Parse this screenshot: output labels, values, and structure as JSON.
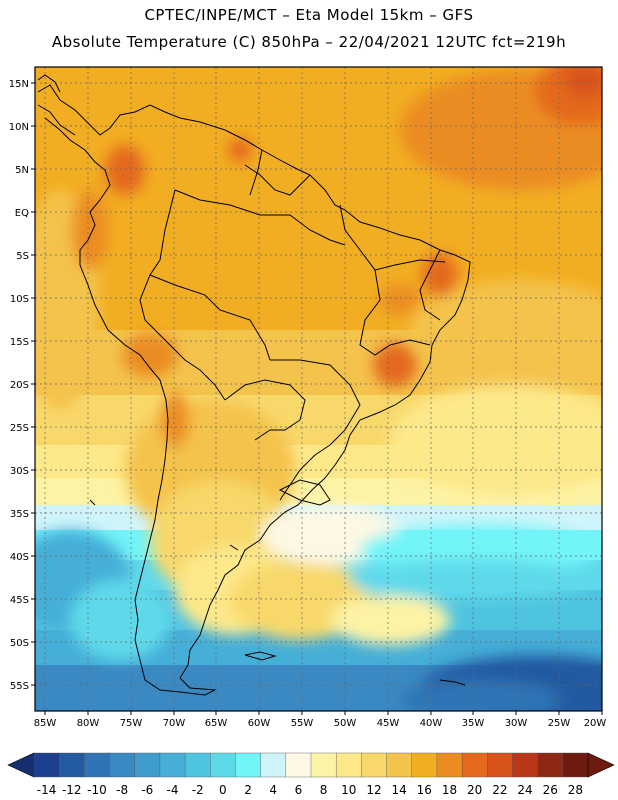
{
  "header": {
    "line1": "CPTEC/INPE/MCT –  Eta Model 15km – GFS",
    "line2": "Absolute Temperature (C) 850hPa – 22/04/2021 12UTC fct=219h"
  },
  "map": {
    "lat_labels": [
      "15N",
      "10N",
      "5N",
      "EQ",
      "5S",
      "10S",
      "15S",
      "20S",
      "25S",
      "30S",
      "35S",
      "40S",
      "45S",
      "50S",
      "55S"
    ],
    "lon_labels": [
      "85W",
      "80W",
      "75W",
      "70W",
      "65W",
      "60W",
      "55W",
      "50W",
      "45W",
      "40W",
      "35W",
      "30W",
      "25W",
      "20W"
    ]
  },
  "colorbar": {
    "labels": [
      "-14",
      "-12",
      "-10",
      "-8",
      "-6",
      "-4",
      "-2",
      "0",
      "2",
      "4",
      "6",
      "8",
      "10",
      "12",
      "14",
      "16",
      "18",
      "20",
      "22",
      "24",
      "26",
      "28"
    ],
    "colors": [
      "#1d3f8f",
      "#245aa2",
      "#2f74b5",
      "#3a89c2",
      "#3f9ccd",
      "#45afd8",
      "#4fc4e0",
      "#5fd9ea",
      "#72f4f8",
      "#cff5fb",
      "#fdf8e4",
      "#fdf3a4",
      "#fde88a",
      "#f8d86b",
      "#f4c34c",
      "#f2ae22",
      "#eb8c22",
      "#e4691d",
      "#d8531a",
      "#b9381a",
      "#8e2714",
      "#6e1a10"
    ]
  }
}
